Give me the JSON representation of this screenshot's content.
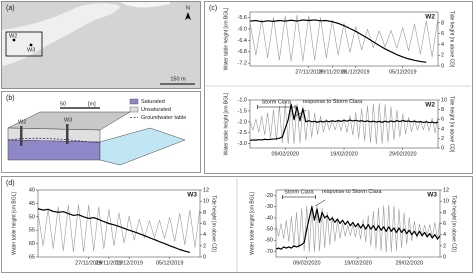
{
  "panels": {
    "a": {
      "label": "(a)",
      "wells": [
        "W2",
        "W3"
      ],
      "north": "N",
      "scale": "150 m"
    },
    "b": {
      "label": "(b)",
      "scale": "50",
      "scale_unit": "[m]",
      "wells": [
        "W2",
        "W3"
      ],
      "legend": [
        "Saturated",
        "Unsaturated",
        "Groundwater table"
      ]
    },
    "c": {
      "label": "(c)"
    },
    "d": {
      "label": "(d)"
    }
  },
  "chart_data": [
    {
      "type": "line",
      "title": "W2",
      "ylabel": "Water table height [cm BGL]",
      "y2label": "Tide height [m above CD]",
      "x": [
        22,
        22.5,
        23,
        23.5,
        24,
        24.5,
        25,
        25.5,
        26,
        26.5,
        27,
        27.5,
        28,
        28.5,
        29,
        29.5,
        30,
        30.5,
        31,
        31.5,
        32,
        32.5,
        33,
        33.5,
        34,
        34.5,
        35,
        35.5,
        36,
        36.5,
        37,
        37.5,
        38
      ],
      "xlim": [
        22,
        38
      ],
      "xticks": [
        {
          "value": 27,
          "label": "27/11/2019"
        },
        {
          "value": 29,
          "label": "29/11/2019"
        },
        {
          "value": 31,
          "label": "01/12/2019"
        },
        {
          "value": 35,
          "label": "05/12/2019"
        }
      ],
      "ylim": [
        -7.3,
        -5.4
      ],
      "yticks": [
        -5.6,
        {
          "value": -6,
          "label": "-6.0"
        },
        -6.4,
        -6.8,
        -7.2
      ],
      "y2lim": [
        0,
        10
      ],
      "y2ticks": [
        0,
        2,
        4,
        6,
        8
      ],
      "series": [
        {
          "name": "Tide",
          "axis": "y2",
          "color": "#9a9a9a",
          "values": [
            8.0,
            2.0,
            8.6,
            1.5,
            9.0,
            1.1,
            9.3,
            0.9,
            9.4,
            0.9,
            9.3,
            1.1,
            9.0,
            1.5,
            8.5,
            2.0,
            7.9,
            2.5,
            7.3,
            3.0,
            6.8,
            3.4,
            6.5,
            3.5,
            6.6,
            3.3,
            7.1,
            2.8,
            7.8,
            2.2,
            8.4,
            1.7,
            8.9
          ]
        },
        {
          "name": "Water table",
          "color": "#000000",
          "values": [
            -5.72,
            -5.7,
            -5.74,
            -5.71,
            -5.73,
            -5.7,
            -5.72,
            -5.69,
            -5.72,
            -5.68,
            -5.7,
            -5.68,
            -5.71,
            -5.7,
            -5.74,
            -5.8,
            -5.88,
            -5.98,
            -6.08,
            -6.2,
            -6.32,
            -6.45,
            -6.58,
            -6.7,
            -6.8,
            -6.9,
            -6.98,
            -7.05,
            -7.1,
            -7.14,
            -7.17,
            null,
            null
          ]
        }
      ]
    },
    {
      "type": "line",
      "title": "W2",
      "ylabel": "Water table height [cm BGL]",
      "y2label": "Tide height [m above CD]",
      "annotations": [
        "Storm Ciara",
        "response to Storm Ciara"
      ],
      "x": [
        3,
        3.5,
        4,
        4.5,
        5,
        5.5,
        6,
        6.5,
        7,
        7.5,
        8,
        8.5,
        9,
        9.5,
        10,
        10.5,
        11,
        11.5,
        12,
        12.5,
        13,
        13.5,
        14,
        14.5,
        15,
        15.5,
        16,
        16.5,
        17,
        17.5,
        18,
        18.5,
        19,
        19.5,
        20,
        20.5,
        21,
        21.5,
        22,
        22.5,
        23,
        23.5,
        24,
        24.5,
        25,
        25.5,
        26,
        26.5,
        27,
        27.5,
        28,
        28.5,
        29,
        29.5,
        30,
        30.5,
        31,
        31.5,
        32,
        32.5,
        33,
        33.5,
        34,
        34.5,
        35
      ],
      "xlim": [
        3,
        35
      ],
      "xticks": [
        {
          "value": 9,
          "label": "09/02/2020"
        },
        {
          "value": 19,
          "label": "19/02/2020"
        },
        {
          "value": 29,
          "label": "29/02/2020"
        }
      ],
      "ylim": [
        -3.2,
        -1.0
      ],
      "yticks": [
        {
          "value": -1,
          "label": "-1.0"
        },
        -1.5,
        {
          "value": -2,
          "label": "-2.0"
        },
        -2.5,
        {
          "value": -3,
          "label": "-3.0"
        }
      ],
      "y2lim": [
        0,
        10
      ],
      "y2ticks": [
        0,
        2,
        4,
        6,
        8,
        10
      ],
      "series": [
        {
          "name": "Tide",
          "axis": "y2",
          "color": "#9a9a9a",
          "values": [
            5.7,
            3.7,
            6.0,
            3.3,
            6.6,
            2.8,
            7.3,
            2.2,
            8.0,
            1.6,
            8.7,
            1.1,
            9.2,
            0.9,
            9.3,
            0.9,
            9.2,
            1.1,
            8.7,
            1.6,
            8.0,
            2.2,
            7.3,
            2.8,
            6.6,
            3.3,
            6.0,
            3.7,
            5.7,
            3.8,
            5.8,
            3.6,
            6.1,
            3.2,
            6.7,
            2.7,
            7.4,
            2.0,
            8.2,
            1.5,
            8.8,
            1.1,
            9.2,
            0.8,
            9.3,
            0.9,
            9.1,
            1.2,
            8.6,
            1.7,
            7.9,
            2.3,
            7.1,
            2.9,
            6.4,
            3.4,
            5.9,
            3.7,
            5.7,
            3.8,
            5.8,
            3.5,
            6.2,
            3.1,
            6.8
          ]
        },
        {
          "name": "Water table",
          "color": "#000000",
          "values": [
            -2.85,
            -2.83,
            -2.84,
            -2.82,
            -2.83,
            -2.8,
            -2.82,
            -2.8,
            -2.79,
            -2.78,
            -2.75,
            -2.7,
            -2.3,
            -1.9,
            -1.2,
            -1.9,
            -1.3,
            -1.95,
            -1.4,
            -2.0,
            -1.95,
            -2.0,
            -1.98,
            -2.02,
            -1.97,
            -2.01,
            -1.96,
            -2.0,
            -1.95,
            -1.99,
            -1.94,
            -1.98,
            -1.93,
            -1.97,
            -1.92,
            -1.96,
            -1.93,
            -1.97,
            -1.95,
            -1.99,
            -1.96,
            -2.0,
            -1.97,
            -2.01,
            -1.98,
            -2.02,
            -1.97,
            -2.01,
            -1.96,
            -2.0,
            -1.95,
            -1.99,
            -1.94,
            -1.98,
            -1.96,
            -2.0,
            -1.97,
            -2.01,
            -1.99,
            -2.03,
            -2.0,
            -2.04,
            -2.01,
            -2.05,
            -2.02
          ]
        }
      ]
    },
    {
      "type": "line",
      "title": "W3",
      "ylabel": "Water table height [cm BGL]",
      "y2label": "Tide height [m above CD]",
      "x": [
        22,
        22.5,
        23,
        23.5,
        24,
        24.5,
        25,
        25.5,
        26,
        26.5,
        27,
        27.5,
        28,
        28.5,
        29,
        29.5,
        30,
        30.5,
        31,
        31.5,
        32,
        32.5,
        33,
        33.5,
        34,
        34.5,
        35,
        35.5,
        36,
        36.5,
        37,
        37.5,
        38
      ],
      "xlim": [
        22,
        38
      ],
      "xticks": [
        {
          "value": 27,
          "label": "27/11/2019"
        },
        {
          "value": 29,
          "label": "29/11/2019"
        },
        {
          "value": 31,
          "label": "01/12/2019"
        },
        {
          "value": 35,
          "label": "05/12/2019"
        }
      ],
      "ylim": [
        65,
        40
      ],
      "yticks": [
        40,
        45,
        50,
        55,
        60,
        65
      ],
      "y2lim": [
        0,
        12
      ],
      "y2ticks": [
        0,
        2,
        4,
        6,
        8,
        10,
        12
      ],
      "series": [
        {
          "name": "Tide",
          "axis": "y2",
          "color": "#9a9a9a",
          "values": [
            8.0,
            2.0,
            8.6,
            1.5,
            9.0,
            1.1,
            9.3,
            0.9,
            9.4,
            0.9,
            9.3,
            1.1,
            9.0,
            1.5,
            8.5,
            2.0,
            7.9,
            2.5,
            7.3,
            3.0,
            6.8,
            3.4,
            6.5,
            3.5,
            6.6,
            3.3,
            7.1,
            2.8,
            7.8,
            2.2,
            8.4,
            1.7,
            8.9
          ]
        },
        {
          "name": "Water table",
          "color": "#000000",
          "values": [
            47.0,
            47.5,
            47.2,
            48.0,
            48.3,
            48.1,
            48.8,
            49.5,
            49.2,
            50.0,
            50.6,
            50.3,
            51.0,
            51.8,
            52.5,
            53.0,
            53.6,
            54.3,
            55.0,
            55.6,
            56.3,
            57.0,
            57.8,
            58.5,
            59.3,
            60.0,
            60.8,
            61.5,
            62.2,
            62.8,
            63.3,
            null,
            null
          ]
        }
      ]
    },
    {
      "type": "line",
      "title": "W3",
      "ylabel": "Water table height [cm BGL]",
      "y2label": "Tide height [m above CD]",
      "annotations": [
        "Storm Ciara",
        "response to Storm Ciara"
      ],
      "x": [
        3,
        3.5,
        4,
        4.5,
        5,
        5.5,
        6,
        6.5,
        7,
        7.5,
        8,
        8.5,
        9,
        9.5,
        10,
        10.5,
        11,
        11.5,
        12,
        12.5,
        13,
        13.5,
        14,
        14.5,
        15,
        15.5,
        16,
        16.5,
        17,
        17.5,
        18,
        18.5,
        19,
        19.5,
        20,
        20.5,
        21,
        21.5,
        22,
        22.5,
        23,
        23.5,
        24,
        24.5,
        25,
        25.5,
        26,
        26.5,
        27,
        27.5,
        28,
        28.5,
        29,
        29.5,
        30,
        30.5,
        31,
        31.5,
        32,
        32.5,
        33,
        33.5,
        34,
        34.5,
        35
      ],
      "xlim": [
        3,
        35
      ],
      "xticks": [
        {
          "value": 9,
          "label": "09/02/2020"
        },
        {
          "value": 19,
          "label": "19/02/2020"
        },
        {
          "value": 29,
          "label": "29/02/2020"
        }
      ],
      "ylim": [
        -75,
        -15
      ],
      "yticks": [
        -20,
        -30,
        -40,
        -50,
        -60,
        -70
      ],
      "y2lim": [
        0,
        12
      ],
      "y2ticks": [
        0,
        2,
        4,
        6,
        8,
        10,
        12
      ],
      "series": [
        {
          "name": "Tide",
          "axis": "y2",
          "color": "#9a9a9a",
          "values": [
            5.7,
            3.7,
            6.0,
            3.3,
            6.6,
            2.8,
            7.3,
            2.2,
            8.0,
            1.6,
            8.7,
            1.1,
            9.2,
            0.9,
            9.3,
            0.9,
            9.2,
            1.1,
            8.7,
            1.6,
            8.0,
            2.2,
            7.3,
            2.8,
            6.6,
            3.3,
            6.0,
            3.7,
            5.7,
            3.8,
            5.8,
            3.6,
            6.1,
            3.2,
            6.7,
            2.7,
            7.4,
            2.0,
            8.2,
            1.5,
            8.8,
            1.1,
            9.2,
            0.8,
            9.3,
            0.9,
            9.1,
            1.2,
            8.6,
            1.7,
            7.9,
            2.3,
            7.1,
            2.9,
            6.4,
            3.4,
            5.9,
            3.7,
            5.7,
            3.8,
            5.8,
            3.5,
            6.2,
            3.1,
            6.8
          ]
        },
        {
          "name": "Water table",
          "color": "#000000",
          "values": [
            -68,
            -67,
            -68,
            -66,
            -67,
            -66,
            -67,
            -65,
            -66,
            -65,
            -64,
            -62,
            -50,
            -40,
            -30,
            -42,
            -32,
            -44,
            -35,
            -40,
            -38,
            -42,
            -40,
            -44,
            -41,
            -45,
            -42,
            -46,
            -43,
            -47,
            -44,
            -48,
            -45,
            -49,
            -46,
            -50,
            -46,
            -50,
            -47,
            -51,
            -47,
            -51,
            -48,
            -52,
            -48,
            -52,
            -49,
            -53,
            -49,
            -53,
            -50,
            -54,
            -51,
            -55,
            -52,
            -56,
            -52,
            -56,
            -53,
            -57,
            -54,
            -58,
            -55,
            -59,
            -56
          ]
        }
      ]
    }
  ]
}
